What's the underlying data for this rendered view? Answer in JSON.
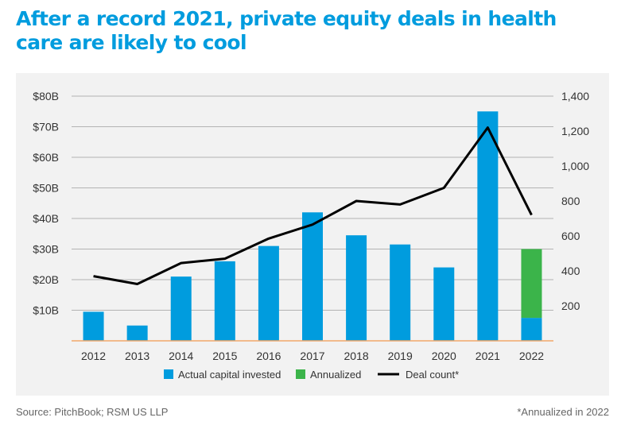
{
  "title": "After a record 2021, private equity deals in health care are likely to cool",
  "footer": {
    "source": "Source: PitchBook; RSM US LLP",
    "note": "*Annualized in 2022"
  },
  "colors": {
    "actual": "#009cde",
    "annualized": "#3bb44a",
    "deal_line": "#000000",
    "grid": "#b3b3b3",
    "baseline": "#f2a86b"
  },
  "chart_data": {
    "type": "bar",
    "categories": [
      "2012",
      "2013",
      "2014",
      "2015",
      "2016",
      "2017",
      "2018",
      "2019",
      "2020",
      "2021",
      "2022"
    ],
    "series": [
      {
        "name": "Actual capital invested",
        "kind": "bar",
        "axis": "left",
        "values": [
          9.5,
          5,
          21,
          26,
          31,
          42,
          34.5,
          31.5,
          24,
          75,
          7.5
        ]
      },
      {
        "name": "Annualized",
        "kind": "stacked-bar",
        "axis": "left",
        "values": [
          0,
          0,
          0,
          0,
          0,
          0,
          0,
          0,
          0,
          0,
          22.5
        ]
      },
      {
        "name": "Deal count*",
        "kind": "line",
        "axis": "right",
        "values": [
          370,
          325,
          445,
          470,
          585,
          665,
          800,
          780,
          875,
          1220,
          720
        ]
      }
    ],
    "y_left": {
      "min": 0,
      "max": 80,
      "ticks": [
        10,
        20,
        30,
        40,
        50,
        60,
        70,
        80
      ],
      "tick_labels": [
        "$10B",
        "$20B",
        "$30B",
        "$40B",
        "$50B",
        "$60B",
        "$70B",
        "$80B"
      ]
    },
    "y_right": {
      "min": 0,
      "max": 1400,
      "ticks": [
        200,
        400,
        600,
        800,
        1000,
        1200,
        1400
      ],
      "tick_labels": [
        "200",
        "400",
        "600",
        "800",
        "1,000",
        "1,200",
        "1,400"
      ]
    },
    "grid": true,
    "legend_position": "bottom"
  }
}
